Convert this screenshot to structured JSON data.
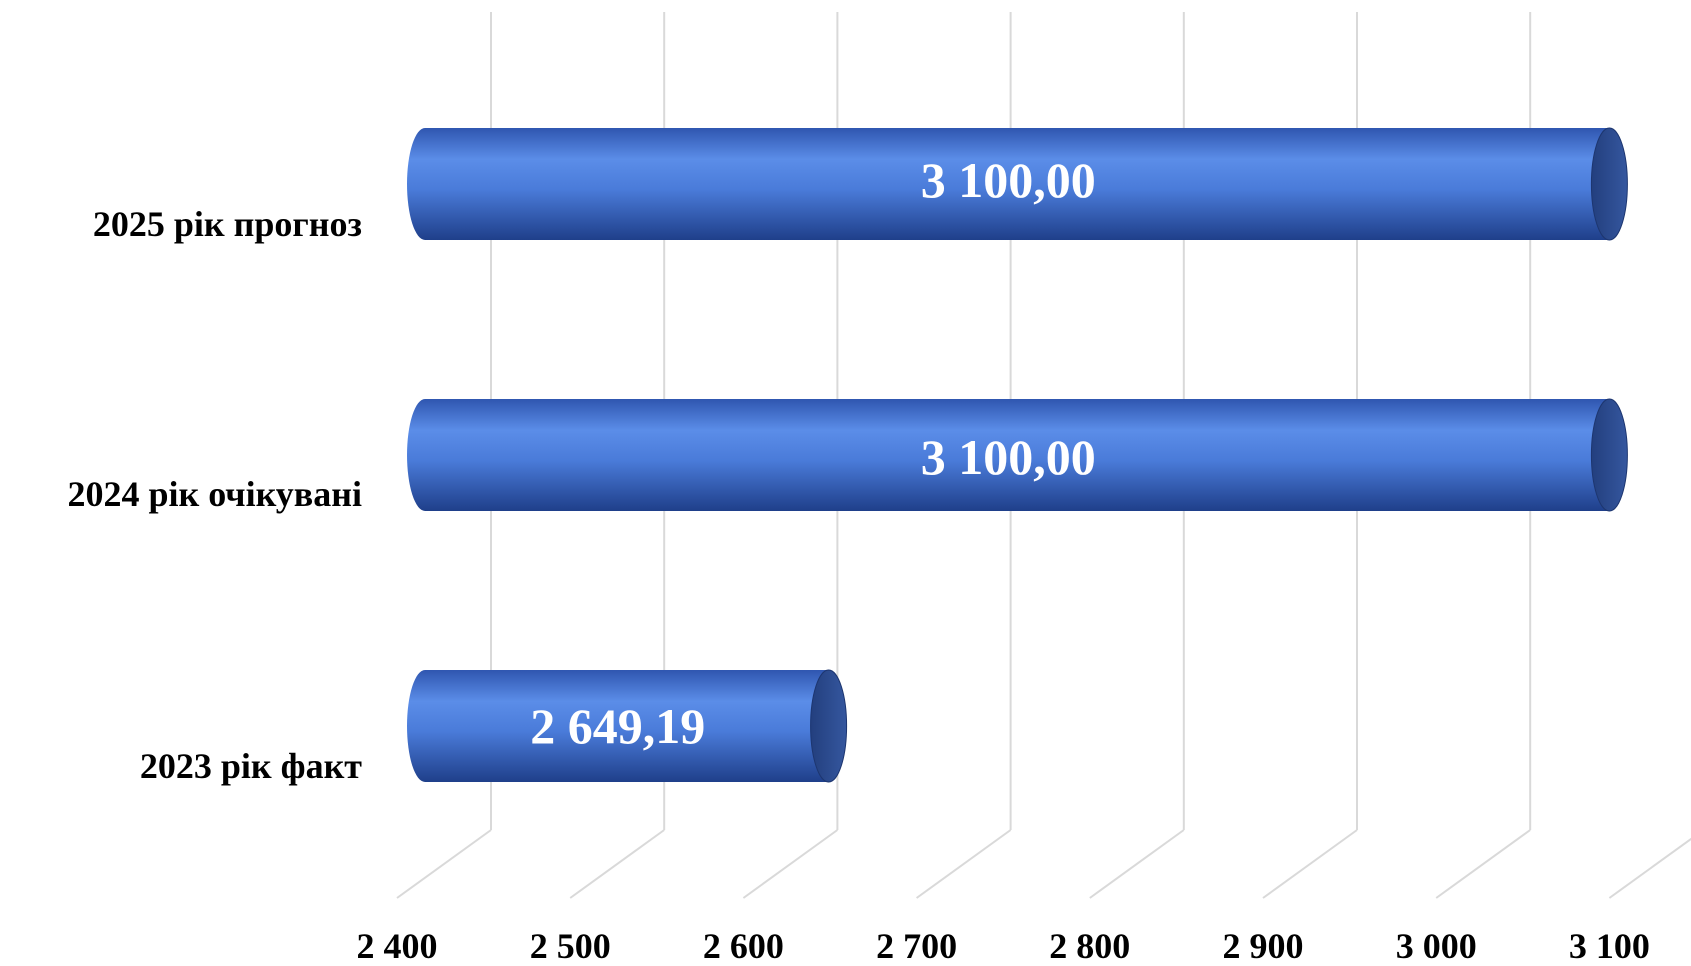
{
  "chart_data": {
    "type": "bar",
    "orientation": "horizontal",
    "style": "3d-cylinder",
    "categories": [
      "2025 рік прогноз",
      "2024 рік очікувані",
      "2023 рік факт"
    ],
    "values": [
      3100.0,
      3100.0,
      2649.19
    ],
    "data_labels": [
      "3 100,00",
      "3 100,00",
      "2 649,19"
    ],
    "xlim": [
      2400,
      3100
    ],
    "x_ticks": [
      2400,
      2500,
      2600,
      2700,
      2800,
      2900,
      3000,
      3100
    ],
    "x_tick_labels": [
      "2 400",
      "2 500",
      "2 600",
      "2 700",
      "2 800",
      "2 900",
      "3 000",
      "3 100"
    ],
    "grid": true,
    "legend": "none",
    "title": "",
    "xlabel": "",
    "ylabel": "",
    "colors": {
      "bar_light": "#5b8de8",
      "bar_mid": "#3f6fce",
      "bar_dark": "#1f3f8a",
      "cap": "#2b4a8c",
      "grid": "#d9d9d9"
    }
  }
}
